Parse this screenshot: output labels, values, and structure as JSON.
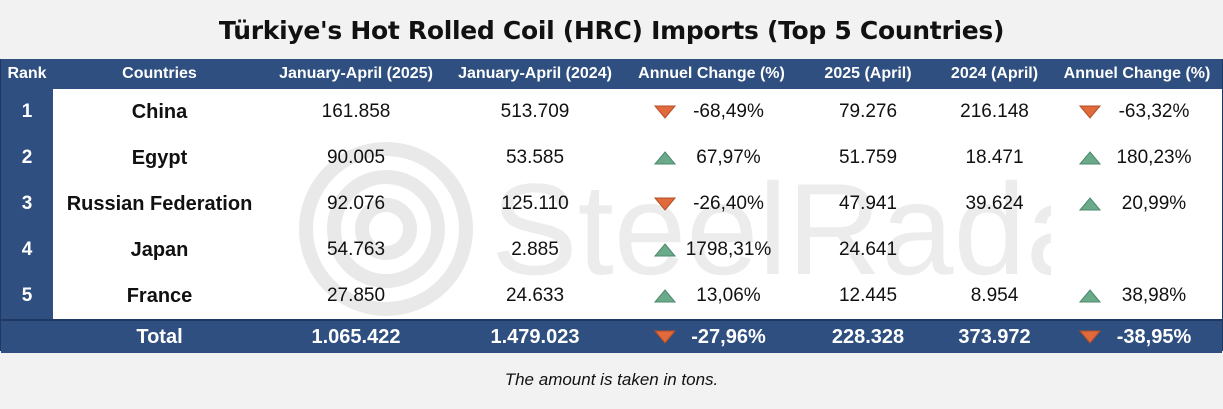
{
  "title": "Türkiye's Hot Rolled Coil (HRC) Imports (Top 5 Countries)",
  "note": "The amount is taken in tons.",
  "watermark": "SteelRadar",
  "colors": {
    "header": "#2e4f7f",
    "up": "#6aaa8a",
    "down": "#e06a3b"
  },
  "chart_data": {
    "type": "table",
    "title": "Türkiye's Hot Rolled Coil (HRC) Imports (Top 5 Countries)",
    "columns": [
      "Rank",
      "Countries",
      "January-April (2025)",
      "January-April (2024)",
      "Annuel Change (%)",
      "2025 (April)",
      "2024 (April)",
      "Annuel Change (%)"
    ],
    "rows": [
      {
        "rank": "1",
        "country": "China",
        "ja2025": "161.858",
        "ja2024": "513.709",
        "chg1": "-68,49%",
        "dir1": "down",
        "apr2025": "79.276",
        "apr2024": "216.148",
        "chg2": "-63,32%",
        "dir2": "down"
      },
      {
        "rank": "2",
        "country": "Egypt",
        "ja2025": "90.005",
        "ja2024": "53.585",
        "chg1": "67,97%",
        "dir1": "up",
        "apr2025": "51.759",
        "apr2024": "18.471",
        "chg2": "180,23%",
        "dir2": "up"
      },
      {
        "rank": "3",
        "country": "Russian Federation",
        "ja2025": "92.076",
        "ja2024": "125.110",
        "chg1": "-26,40%",
        "dir1": "down",
        "apr2025": "47.941",
        "apr2024": "39.624",
        "chg2": "20,99%",
        "dir2": "up"
      },
      {
        "rank": "4",
        "country": "Japan",
        "ja2025": "54.763",
        "ja2024": "2.885",
        "chg1": "1798,31%",
        "dir1": "up",
        "apr2025": "24.641",
        "apr2024": "",
        "chg2": "",
        "dir2": ""
      },
      {
        "rank": "5",
        "country": "France",
        "ja2025": "27.850",
        "ja2024": "24.633",
        "chg1": "13,06%",
        "dir1": "up",
        "apr2025": "12.445",
        "apr2024": "8.954",
        "chg2": "38,98%",
        "dir2": "up"
      }
    ],
    "total": {
      "label": "Total",
      "ja2025": "1.065.422",
      "ja2024": "1.479.023",
      "chg1": "-27,96%",
      "dir1": "down",
      "apr2025": "228.328",
      "apr2024": "373.972",
      "chg2": "-38,95%",
      "dir2": "down"
    }
  }
}
